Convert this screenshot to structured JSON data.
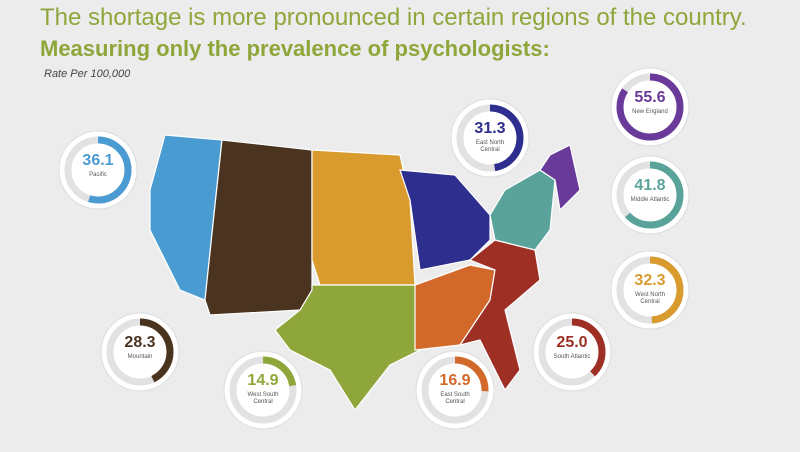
{
  "chart_data": {
    "type": "donut-gauge",
    "title": "The shortage is more pronounced in certain regions of the country.",
    "subtitle": "Measuring only the prevalence of psychologists:",
    "unit_label": "Rate Per 100,000",
    "ylim": [
      0,
      66
    ],
    "categories": [
      "Pacific",
      "East North Central",
      "New England",
      "Middle Atlantic",
      "West North Central",
      "Mountain",
      "West South Central",
      "East South Central",
      "South Atlantic"
    ],
    "values": [
      36.1,
      31.3,
      55.6,
      41.8,
      32.3,
      28.3,
      14.9,
      16.9,
      25.0
    ],
    "value_labels": [
      "36.1",
      "31.3",
      "55.6",
      "41.8",
      "32.3",
      "28.3",
      "14.9",
      "16.9",
      "25.0"
    ],
    "colors": [
      "#4a9bd1",
      "#2e2e8f",
      "#6a3a9a",
      "#5aa39a",
      "#d99a2e",
      "#4a3420",
      "#8fa63a",
      "#d2692a",
      "#9e2f24"
    ]
  }
}
